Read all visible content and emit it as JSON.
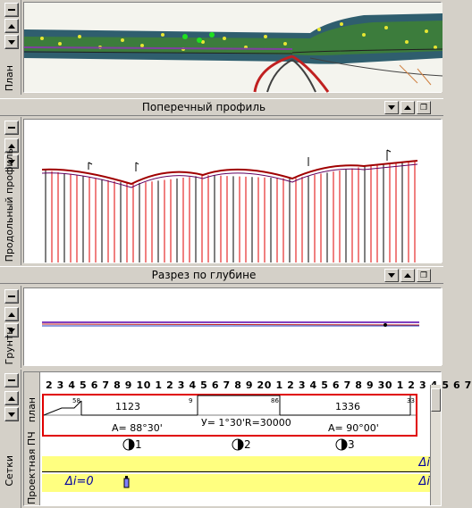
{
  "plan_panel": {
    "label": "План"
  },
  "cross_profile_bar": {
    "title": "Поперечный профиль"
  },
  "profile_panel": {
    "label": "Продольный профиль"
  },
  "depth_bar": {
    "title": "Разрез по глубине"
  },
  "soils_panel": {
    "label": "Грунты"
  },
  "grid_panel": {
    "label": "Сетки",
    "row_label_plan": "план",
    "row_label_pch": "Проектная ПЧ",
    "ruler_digits": "2 3 4 5 6 7 8 9 10 1 2 3 4 5 6 7 8 9 20 1 2 3 4 5 6 7 8 9 30 1 2 3 4 5 6 7",
    "segments": [
      {
        "length": "1123",
        "angle": "A= 88°30'"
      },
      {
        "curve": "У= 1°30'R=30000"
      },
      {
        "length": "1336",
        "angle": "A= 90°00'"
      }
    ],
    "markers": [
      "1",
      "2",
      "3"
    ],
    "small_nums": [
      "58",
      "9",
      "86",
      "33"
    ],
    "delta_left": "Δi=0",
    "delta_right_1": "Δi",
    "delta_right_2": "Δi"
  },
  "colors": {
    "panel_bg": "#d4d0c8",
    "red": "#e00000",
    "yellow": "#ffff80"
  }
}
